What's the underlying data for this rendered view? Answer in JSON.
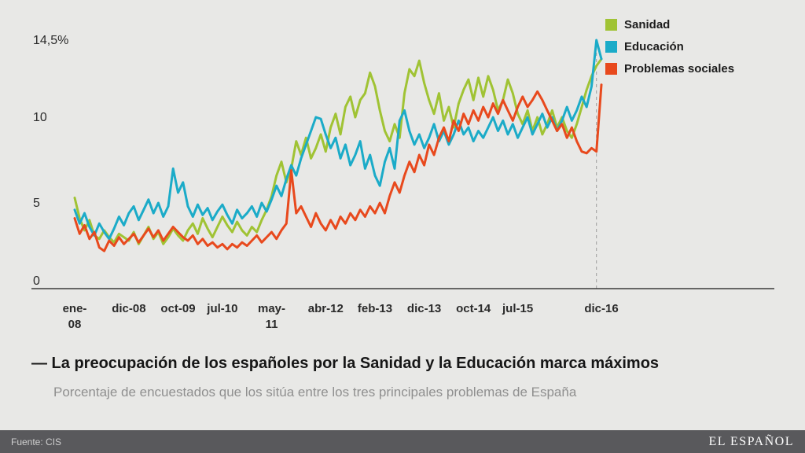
{
  "page": {
    "background": "#e8e8e6"
  },
  "legend": {
    "items": [
      {
        "label": "Sanidad",
        "color": "#a0c334"
      },
      {
        "label": "Educación",
        "color": "#1babc8"
      },
      {
        "label": "Problemas sociales",
        "color": "#e8491d"
      }
    ]
  },
  "caption": {
    "title": "— La preocupación de los españoles por la Sanidad y la Educación marca máximos",
    "subtitle": "Porcentaje de encuestados que los sitúa entre los tres principales problemas de España"
  },
  "footer": {
    "source": "Fuente: CIS",
    "brand": "EL ESPAÑOL"
  },
  "chart_data": {
    "type": "line",
    "title": "",
    "xlabel": "",
    "ylabel": "",
    "x_unit": "month",
    "x_start": "ene-08",
    "x_end": "dic-16",
    "n_points": 108,
    "ylim": [
      0,
      14.5
    ],
    "grid": false,
    "legend_position": "top-right",
    "y_ticks": [
      {
        "label": "14,5%",
        "value": 14.5
      },
      {
        "label": "10",
        "value": 10
      },
      {
        "label": "5",
        "value": 5
      },
      {
        "label": "0",
        "value": 0
      }
    ],
    "x_ticks": [
      {
        "label": "ene-08",
        "index": 0,
        "wrap": true
      },
      {
        "label": "dic-08",
        "index": 11
      },
      {
        "label": "oct-09",
        "index": 21
      },
      {
        "label": "jul-10",
        "index": 30
      },
      {
        "label": "may-11",
        "index": 40,
        "wrap": true
      },
      {
        "label": "abr-12",
        "index": 51
      },
      {
        "label": "feb-13",
        "index": 61
      },
      {
        "label": "dic-13",
        "index": 71
      },
      {
        "label": "oct-14",
        "index": 81
      },
      {
        "label": "jul-15",
        "index": 90
      },
      {
        "label": "dic-16",
        "index": 107
      }
    ],
    "series": [
      {
        "name": "Sanidad",
        "color": "#a0c334",
        "values": [
          5.3,
          4.1,
          3.4,
          4.0,
          3.1,
          2.9,
          3.4,
          3.0,
          2.7,
          3.2,
          3.0,
          2.8,
          3.3,
          2.6,
          3.1,
          3.6,
          2.9,
          3.3,
          2.6,
          3.0,
          3.5,
          3.1,
          2.8,
          3.4,
          3.8,
          3.2,
          4.1,
          3.5,
          3.0,
          3.6,
          4.2,
          3.7,
          3.3,
          3.9,
          3.4,
          3.1,
          3.6,
          3.3,
          4.0,
          4.6,
          5.4,
          6.6,
          7.4,
          6.2,
          7.0,
          8.6,
          7.8,
          8.8,
          7.6,
          8.2,
          9.0,
          8.0,
          9.4,
          10.2,
          9.0,
          10.6,
          11.2,
          10.0,
          11.0,
          11.4,
          12.6,
          11.8,
          10.4,
          9.2,
          8.6,
          9.6,
          8.8,
          11.4,
          12.8,
          12.4,
          13.3,
          12.0,
          11.0,
          10.2,
          11.4,
          9.8,
          10.6,
          9.4,
          10.8,
          11.6,
          12.2,
          11.0,
          12.3,
          11.2,
          12.4,
          11.6,
          10.4,
          11.0,
          12.2,
          11.4,
          10.2,
          9.6,
          10.4,
          9.2,
          10.0,
          9.0,
          9.6,
          10.4,
          9.4,
          10.0,
          9.2,
          8.8,
          9.6,
          10.6,
          11.6,
          12.4,
          13.0,
          13.4
        ]
      },
      {
        "name": "Educación",
        "color": "#1babc8",
        "values": [
          4.6,
          3.8,
          4.4,
          3.6,
          3.1,
          3.8,
          3.3,
          2.9,
          3.5,
          4.2,
          3.7,
          4.4,
          4.8,
          4.0,
          4.6,
          5.2,
          4.4,
          5.0,
          4.2,
          4.8,
          7.0,
          5.6,
          6.2,
          4.8,
          4.2,
          4.9,
          4.3,
          4.7,
          4.0,
          4.5,
          4.9,
          4.3,
          3.8,
          4.6,
          4.1,
          4.4,
          4.8,
          4.2,
          5.0,
          4.5,
          5.2,
          6.0,
          5.4,
          6.4,
          7.2,
          6.6,
          7.6,
          8.4,
          9.2,
          10.0,
          9.9,
          9.0,
          8.2,
          8.8,
          7.6,
          8.4,
          7.2,
          7.8,
          8.6,
          7.0,
          7.8,
          6.6,
          6.0,
          7.4,
          8.2,
          7.0,
          9.8,
          10.4,
          9.2,
          8.4,
          9.0,
          8.2,
          8.8,
          9.6,
          8.6,
          9.2,
          8.4,
          9.0,
          9.8,
          9.0,
          9.4,
          8.6,
          9.2,
          8.8,
          9.4,
          10.0,
          9.2,
          9.8,
          9.0,
          9.6,
          8.8,
          9.4,
          10.0,
          9.0,
          9.6,
          10.2,
          9.4,
          10.0,
          9.2,
          9.8,
          10.6,
          9.8,
          10.4,
          11.2,
          10.6,
          11.8,
          14.5,
          13.4
        ]
      },
      {
        "name": "Problemas sociales",
        "color": "#e8491d",
        "values": [
          4.1,
          3.2,
          3.7,
          2.9,
          3.3,
          2.4,
          2.2,
          2.8,
          2.5,
          3.0,
          2.6,
          2.9,
          3.2,
          2.7,
          3.1,
          3.5,
          3.0,
          3.4,
          2.8,
          3.2,
          3.6,
          3.3,
          3.0,
          2.8,
          3.1,
          2.6,
          2.9,
          2.5,
          2.7,
          2.4,
          2.6,
          2.3,
          2.6,
          2.4,
          2.7,
          2.5,
          2.8,
          3.1,
          2.7,
          3.0,
          3.3,
          2.9,
          3.4,
          3.8,
          6.9,
          4.4,
          4.8,
          4.2,
          3.6,
          4.4,
          3.8,
          3.4,
          4.0,
          3.5,
          4.2,
          3.8,
          4.4,
          4.0,
          4.6,
          4.2,
          4.8,
          4.4,
          5.0,
          4.4,
          5.4,
          6.2,
          5.6,
          6.6,
          7.4,
          6.8,
          7.8,
          7.2,
          8.4,
          7.8,
          8.8,
          9.4,
          8.6,
          9.8,
          9.2,
          10.2,
          9.6,
          10.4,
          9.8,
          10.6,
          10.0,
          10.8,
          10.2,
          11.0,
          10.4,
          9.8,
          10.6,
          11.2,
          10.6,
          11.0,
          11.5,
          11.0,
          10.4,
          9.8,
          9.2,
          9.6,
          8.8,
          9.4,
          8.6,
          8.0,
          7.9,
          8.2,
          8.0,
          11.9
        ]
      }
    ]
  }
}
